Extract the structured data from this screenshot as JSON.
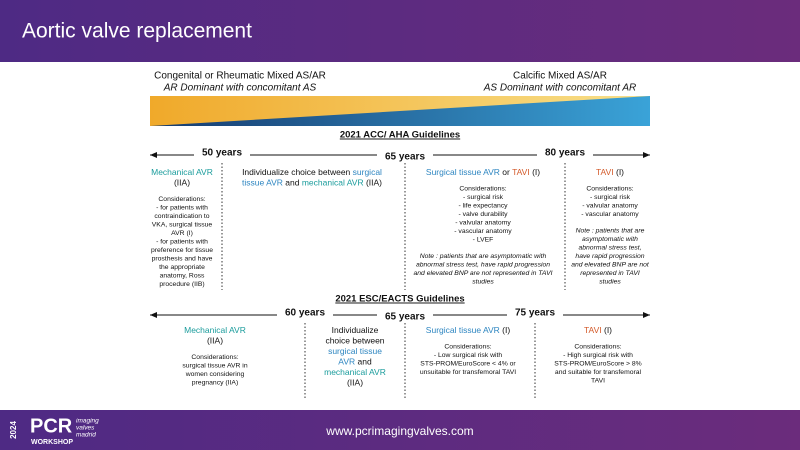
{
  "header": {
    "title": "Aortic valve replacement"
  },
  "spectrum": {
    "left": {
      "title": "Congenital or Rheumatic Mixed AS/AR",
      "subtitle": "AR Dominant with concomitant AS"
    },
    "right": {
      "title": "Calcific Mixed AS/AR",
      "subtitle": "AS Dominant with concomitant AR"
    }
  },
  "acc": {
    "title": "2021 ACC/ AHA Guidelines",
    "ages": [
      "50 years",
      "65 years",
      "80 years"
    ],
    "columns": [
      {
        "heading": [
          [
            {
              "text": "Mechanical AVR",
              "color": "#1a9c9c"
            }
          ],
          [
            {
              "text": "(IIA)"
            }
          ]
        ],
        "considerations": [
          "Considerations:",
          "- for patients with",
          "contraindication to",
          "VKA, surgical tissue",
          "AVR (I)",
          "- for patients with",
          "preference for tissue",
          "prosthesis and have",
          "the appropriate",
          "anatomy, Ross",
          "procedure (IIB)"
        ]
      },
      {
        "heading": [
          [
            {
              "text": "Individualize choice between "
            },
            {
              "text": "surgical",
              "color": "#2e86c1"
            }
          ],
          [
            {
              "text": "tissue AVR",
              "color": "#2e86c1"
            },
            {
              "text": " and "
            },
            {
              "text": "mechanical AVR",
              "color": "#1a9c9c"
            },
            {
              "text": " (IIA)"
            }
          ]
        ]
      },
      {
        "heading": [
          [
            {
              "text": "Surgical tissue AVR",
              "color": "#2e86c1"
            },
            {
              "text": " or "
            },
            {
              "text": "TAVI",
              "color": "#d35a2a"
            },
            {
              "text": " (I)"
            }
          ]
        ],
        "considerations": [
          "Considerations:",
          "- surgical risk",
          "- life expectancy",
          "- valve durability",
          "- valvular anatomy",
          "- vascular anatomy",
          "- LVEF"
        ],
        "note": [
          "Note : patients that are asymptomatic with",
          "abnormal stress test, have rapid progression",
          "and elevated BNP are not represented in TAVI",
          "studies"
        ]
      },
      {
        "heading": [
          [
            {
              "text": "TAVI",
              "color": "#d35a2a"
            },
            {
              "text": " (I)"
            }
          ]
        ],
        "considerations": [
          "Considerations:",
          "- surgical risk",
          "- valvular anatomy",
          "- vascular anatomy"
        ],
        "note": [
          "Note : patients that are",
          "asymptomatic with",
          "abnormal stress test,",
          "have rapid progression",
          "and elevated BNP are not",
          "represented in TAVI",
          "studies"
        ]
      }
    ]
  },
  "esc": {
    "title": "2021 ESC/EACTS Guidelines",
    "ages": [
      "60 years",
      "65 years",
      "75 years"
    ],
    "columns": [
      {
        "heading": [
          [
            {
              "text": "Mechanical AVR",
              "color": "#1a9c9c"
            }
          ],
          [
            {
              "text": "(IIA)"
            }
          ]
        ],
        "considerations": [
          "Considerations:",
          "surgical tissue AVR in",
          "women considering",
          "pregnancy (IIA)"
        ]
      },
      {
        "heading": [
          [
            {
              "text": "Individualize"
            }
          ],
          [
            {
              "text": "choice between"
            }
          ],
          [
            {
              "text": "surgical tissue",
              "color": "#2e86c1"
            }
          ],
          [
            {
              "text": "AVR",
              "color": "#2e86c1"
            },
            {
              "text": " and"
            }
          ],
          [
            {
              "text": "mechanical AVR",
              "color": "#1a9c9c"
            }
          ],
          [
            {
              "text": "(IIA)"
            }
          ]
        ]
      },
      {
        "heading": [
          [
            {
              "text": "Surgical tissue AVR",
              "color": "#2e86c1"
            },
            {
              "text": " (I)"
            }
          ]
        ],
        "considerations": [
          "Considerations:",
          "- Low surgical risk with",
          "STS-PROM/EuroScore < 4% or",
          "unsuitable for transfemoral TAVI"
        ]
      },
      {
        "heading": [
          [
            {
              "text": "TAVI",
              "color": "#d35a2a"
            },
            {
              "text": " (I)"
            }
          ]
        ],
        "considerations": [
          "Considerations:",
          "- High surgical risk with",
          "STS-PROM/EuroScore > 8%",
          "and suitable for transfemoral",
          "TAVI"
        ]
      }
    ]
  },
  "footer": {
    "year": "2024",
    "logo": "PCR",
    "tagline": [
      "imaging",
      "valves",
      "madrid"
    ],
    "workshop": "WORKSHOP",
    "url": "www.pcrimagingvalves.com"
  }
}
